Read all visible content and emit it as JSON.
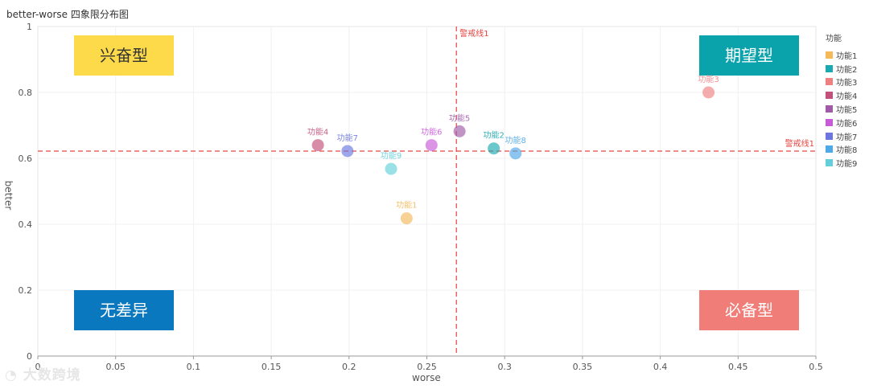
{
  "chart_data": {
    "type": "scatter",
    "title": "better-worse 四象限分布图",
    "xlabel": "worse",
    "ylabel": "better",
    "xlim": [
      0,
      0.5
    ],
    "ylim": [
      0,
      1
    ],
    "x_ticks": [
      "0",
      "0.05",
      "0.1",
      "0.15",
      "0.2",
      "0.25",
      "0.3",
      "0.35",
      "0.4",
      "0.45",
      "0.5"
    ],
    "y_ticks": [
      "0",
      "0.2",
      "0.4",
      "0.6",
      "0.8",
      "1"
    ],
    "grid": true,
    "legend_title": "功能",
    "legend_position": "right",
    "series": [
      {
        "name": "功能1",
        "x": 0.237,
        "y": 0.418,
        "color": "#F5B95A"
      },
      {
        "name": "功能2",
        "x": 0.293,
        "y": 0.63,
        "color": "#1AA9B0"
      },
      {
        "name": "功能3",
        "x": 0.431,
        "y": 0.8,
        "color": "#F08080"
      },
      {
        "name": "功能4",
        "x": 0.18,
        "y": 0.64,
        "color": "#C2507A"
      },
      {
        "name": "功能5",
        "x": 0.271,
        "y": 0.682,
        "color": "#A05AA8"
      },
      {
        "name": "功能6",
        "x": 0.253,
        "y": 0.64,
        "color": "#C95BD8"
      },
      {
        "name": "功能7",
        "x": 0.199,
        "y": 0.622,
        "color": "#6B76E0"
      },
      {
        "name": "功能8",
        "x": 0.307,
        "y": 0.615,
        "color": "#4FA8E8"
      },
      {
        "name": "功能9",
        "x": 0.227,
        "y": 0.568,
        "color": "#62CFDA"
      }
    ],
    "ref_lines": [
      {
        "axis": "x",
        "value": 0.269,
        "label": "警戒线1",
        "color": "#E8413C"
      },
      {
        "axis": "y",
        "value": 0.622,
        "label": "警戒线1",
        "color": "#E8413C"
      }
    ],
    "quadrants": [
      {
        "label": "兴奋型",
        "position": "top-left",
        "color": "#FDDA4A",
        "text_color": "#333333"
      },
      {
        "label": "期望型",
        "position": "top-right",
        "color": "#0AA3AC",
        "text_color": "#ffffff"
      },
      {
        "label": "无差异",
        "position": "bottom-left",
        "color": "#0A78BE",
        "text_color": "#ffffff"
      },
      {
        "label": "必备型",
        "position": "bottom-right",
        "color": "#F17D79",
        "text_color": "#ffffff"
      }
    ]
  },
  "watermark": "大数跨境"
}
